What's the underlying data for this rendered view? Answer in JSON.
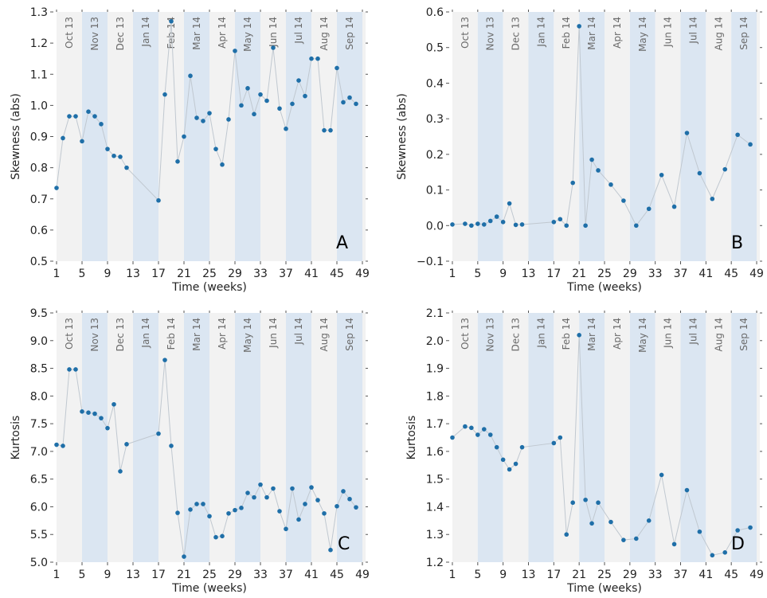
{
  "colors": {
    "band_light": "#f2f2f2",
    "band_blue": "#dbe6f2",
    "marker": "#1f6fa8",
    "line": "#c0c8d0"
  },
  "x_axis": {
    "label": "Time (weeks)",
    "ticks": [
      1,
      5,
      9,
      13,
      17,
      21,
      25,
      29,
      33,
      37,
      41,
      45,
      49
    ]
  },
  "months": [
    {
      "label": "Oct 13",
      "start": 1,
      "end": 5,
      "shade": "light"
    },
    {
      "label": "Nov 13",
      "start": 5,
      "end": 9,
      "shade": "blue"
    },
    {
      "label": "Dec 13",
      "start": 9,
      "end": 13,
      "shade": "light"
    },
    {
      "label": "Jan 14",
      "start": 13,
      "end": 17,
      "shade": "blue"
    },
    {
      "label": "Feb 14",
      "start": 17,
      "end": 21,
      "shade": "light"
    },
    {
      "label": "Mar 14",
      "start": 21,
      "end": 25,
      "shade": "blue"
    },
    {
      "label": "Apr 14",
      "start": 25,
      "end": 29,
      "shade": "light"
    },
    {
      "label": "May 14",
      "start": 29,
      "end": 33,
      "shade": "blue"
    },
    {
      "label": "Jun 14",
      "start": 33,
      "end": 37,
      "shade": "light"
    },
    {
      "label": "Jul 14",
      "start": 37,
      "end": 41,
      "shade": "blue"
    },
    {
      "label": "Aug 14",
      "start": 41,
      "end": 45,
      "shade": "light"
    },
    {
      "label": "Sep 14",
      "start": 45,
      "end": 49,
      "shade": "blue"
    }
  ],
  "chart_data": [
    {
      "panel": "A",
      "type": "line",
      "xlabel": "Time (weeks)",
      "ylabel": "Skewness (abs)",
      "xlim": [
        0.5,
        49.5
      ],
      "ylim": [
        0.5,
        1.3
      ],
      "yticks": [
        "0.5",
        "0.6",
        "0.7",
        "0.8",
        "0.9",
        "1.0",
        "1.1",
        "1.2",
        "1.3"
      ],
      "x": [
        1,
        2,
        3,
        4,
        5,
        6,
        7,
        8,
        9,
        10,
        11,
        12,
        17,
        18,
        19,
        20,
        21,
        22,
        23,
        24,
        25,
        26,
        27,
        28,
        29,
        30,
        31,
        32,
        33,
        34,
        35,
        36,
        37,
        38,
        39,
        40,
        41,
        42,
        43,
        44,
        45,
        46,
        47,
        48
      ],
      "y": [
        0.735,
        0.895,
        0.965,
        0.965,
        0.885,
        0.98,
        0.965,
        0.94,
        0.86,
        0.838,
        0.835,
        0.8,
        0.695,
        1.035,
        1.27,
        0.82,
        0.9,
        1.095,
        0.96,
        0.95,
        0.975,
        0.86,
        0.81,
        0.955,
        1.175,
        1.0,
        1.055,
        0.972,
        1.035,
        1.015,
        1.185,
        0.99,
        0.925,
        1.005,
        1.08,
        1.03,
        1.15,
        1.15,
        0.92,
        0.92,
        1.12,
        1.01,
        1.025,
        1.005
      ]
    },
    {
      "panel": "B",
      "type": "line",
      "xlabel": "Time (weeks)",
      "ylabel": "Skewness (abs)",
      "xlim": [
        0.5,
        49.5
      ],
      "ylim": [
        -0.1,
        0.6
      ],
      "yticks": [
        "−0.1",
        "0.0",
        "0.1",
        "0.2",
        "0.3",
        "0.4",
        "0.5",
        "0.6"
      ],
      "x": [
        1,
        3,
        4,
        5,
        6,
        7,
        8,
        9,
        10,
        11,
        12,
        17,
        18,
        19,
        20,
        21,
        22,
        23,
        24,
        26,
        28,
        30,
        32,
        34,
        36,
        38,
        40,
        42,
        44,
        46,
        48
      ],
      "y": [
        0.003,
        0.005,
        0.0,
        0.005,
        0.003,
        0.013,
        0.025,
        0.01,
        0.062,
        0.002,
        0.003,
        0.01,
        0.018,
        0.0,
        0.12,
        0.56,
        0.0,
        0.185,
        0.155,
        0.115,
        0.07,
        0.0,
        0.047,
        0.142,
        0.053,
        0.26,
        0.147,
        0.075,
        0.158,
        0.255,
        0.228
      ]
    },
    {
      "panel": "C",
      "type": "line",
      "xlabel": "Time (weeks)",
      "ylabel": "Kurtosis",
      "xlim": [
        0.5,
        49.5
      ],
      "ylim": [
        5.0,
        9.5
      ],
      "yticks": [
        "5.0",
        "5.5",
        "6.0",
        "6.5",
        "7.0",
        "7.5",
        "8.0",
        "8.5",
        "9.0",
        "9.5"
      ],
      "x": [
        1,
        2,
        3,
        4,
        5,
        6,
        7,
        8,
        9,
        10,
        11,
        12,
        17,
        18,
        19,
        20,
        21,
        22,
        23,
        24,
        25,
        26,
        27,
        28,
        29,
        30,
        31,
        32,
        33,
        34,
        35,
        36,
        37,
        38,
        39,
        40,
        41,
        42,
        43,
        44,
        45,
        46,
        47,
        48
      ],
      "y": [
        7.12,
        7.1,
        8.48,
        8.48,
        7.72,
        7.7,
        7.68,
        7.6,
        7.42,
        7.85,
        6.64,
        7.13,
        7.32,
        8.65,
        7.1,
        5.89,
        5.1,
        5.95,
        6.05,
        6.05,
        5.83,
        5.45,
        5.47,
        5.88,
        5.94,
        5.98,
        6.25,
        6.17,
        6.4,
        6.17,
        6.33,
        5.92,
        5.6,
        6.33,
        5.77,
        6.05,
        6.35,
        6.12,
        5.88,
        5.22,
        6.01,
        6.28,
        6.14,
        5.99
      ]
    },
    {
      "panel": "D",
      "type": "line",
      "xlabel": "Time (weeks)",
      "ylabel": "Kurtosis",
      "xlim": [
        0.5,
        49.5
      ],
      "ylim": [
        1.2,
        2.1
      ],
      "yticks": [
        "1.2",
        "1.3",
        "1.4",
        "1.5",
        "1.6",
        "1.7",
        "1.8",
        "1.9",
        "2.0",
        "2.1"
      ],
      "x": [
        1,
        3,
        4,
        5,
        6,
        7,
        8,
        9,
        10,
        11,
        12,
        17,
        18,
        19,
        20,
        21,
        22,
        23,
        24,
        26,
        28,
        30,
        32,
        34,
        36,
        38,
        40,
        42,
        44,
        46,
        48
      ],
      "y": [
        1.65,
        1.69,
        1.685,
        1.66,
        1.68,
        1.66,
        1.615,
        1.57,
        1.535,
        1.555,
        1.615,
        1.63,
        1.65,
        1.3,
        1.415,
        2.02,
        1.425,
        1.34,
        1.415,
        1.345,
        1.28,
        1.285,
        1.35,
        1.515,
        1.265,
        1.46,
        1.31,
        1.225,
        1.235,
        1.315,
        1.325
      ]
    }
  ]
}
